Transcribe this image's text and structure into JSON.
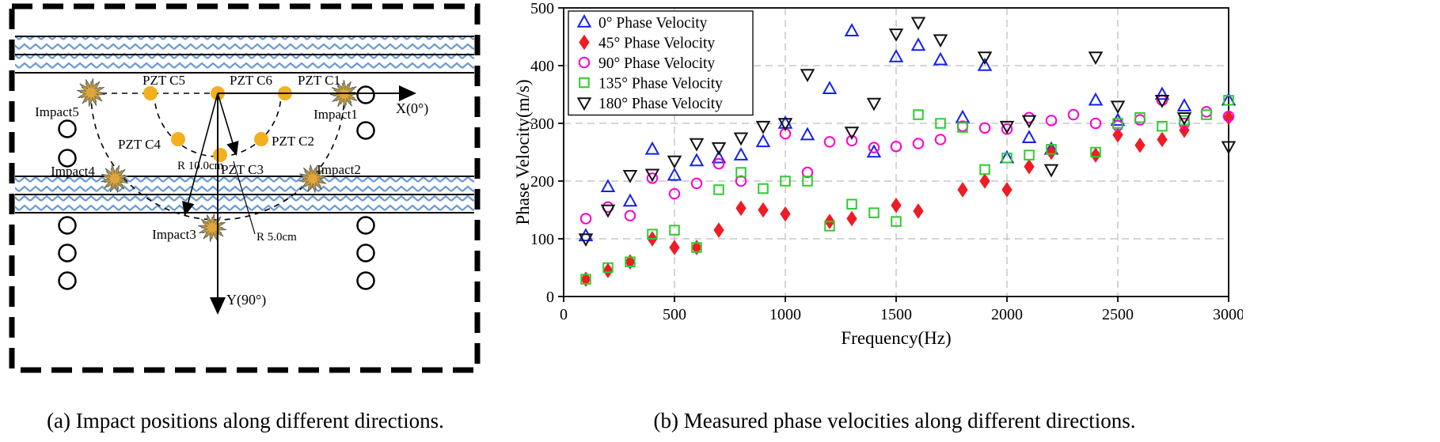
{
  "figure": {
    "captions": {
      "a": "(a) Impact positions along different directions.",
      "b": "(b) Measured phase velocities along different directions."
    }
  },
  "diagram": {
    "sensors": {
      "c5": "PZT C5",
      "c6": "PZT C6",
      "c1": "PZT C1",
      "c4": "PZT C4",
      "c2": "PZT C2",
      "c3": "PZT C3"
    },
    "impacts": {
      "i1": "Impact1",
      "i2": "Impact2",
      "i3": "Impact3",
      "i4": "Impact4",
      "i5": "Impact5"
    },
    "radii": {
      "r10": "R 10.0cm",
      "r5": "R 5.0cm"
    },
    "axes": {
      "x": "X(0°)",
      "y": "Y(90°)"
    },
    "colors": {
      "pzt_dot": "#F2B01E",
      "hatch": "#6B9BD2",
      "impact_fill": "#E0A63D"
    }
  },
  "chart_data": {
    "type": "scatter",
    "title": "",
    "xlabel": "Frequency(Hz)",
    "ylabel": "Phase Velocity(m/s)",
    "xlim": [
      0,
      3000
    ],
    "ylim": [
      0,
      500
    ],
    "xticks": [
      0,
      500,
      1000,
      1500,
      2000,
      2500,
      3000
    ],
    "yticks": [
      0,
      100,
      200,
      300,
      400,
      500
    ],
    "grid": "dashed",
    "legend_position": "top-left",
    "series": [
      {
        "name": "0° Phase Velocity",
        "marker": "triangle-up",
        "fill": "open",
        "color": "#1420F0",
        "points": [
          [
            100,
            105
          ],
          [
            200,
            190
          ],
          [
            300,
            165
          ],
          [
            400,
            255
          ],
          [
            500,
            210
          ],
          [
            600,
            235
          ],
          [
            700,
            240
          ],
          [
            800,
            245
          ],
          [
            900,
            268
          ],
          [
            1000,
            300
          ],
          [
            1100,
            280
          ],
          [
            1200,
            360
          ],
          [
            1300,
            460
          ],
          [
            1400,
            250
          ],
          [
            1500,
            415
          ],
          [
            1600,
            435
          ],
          [
            1700,
            410
          ],
          [
            1800,
            310
          ],
          [
            1900,
            400
          ],
          [
            2000,
            240
          ],
          [
            2100,
            275
          ],
          [
            2200,
            255
          ],
          [
            2400,
            340
          ],
          [
            2500,
            305
          ],
          [
            2700,
            350
          ],
          [
            2800,
            330
          ],
          [
            3000,
            340
          ]
        ]
      },
      {
        "name": "45° Phase Velocity",
        "marker": "diamond",
        "fill": "filled",
        "color": "#EE1C25",
        "points": [
          [
            100,
            30
          ],
          [
            200,
            45
          ],
          [
            300,
            60
          ],
          [
            400,
            100
          ],
          [
            500,
            85
          ],
          [
            600,
            85
          ],
          [
            700,
            115
          ],
          [
            800,
            153
          ],
          [
            900,
            150
          ],
          [
            1000,
            143
          ],
          [
            1200,
            130
          ],
          [
            1300,
            135
          ],
          [
            1500,
            158
          ],
          [
            1600,
            148
          ],
          [
            1800,
            185
          ],
          [
            1900,
            200
          ],
          [
            2000,
            185
          ],
          [
            2100,
            225
          ],
          [
            2200,
            250
          ],
          [
            2400,
            245
          ],
          [
            2500,
            280
          ],
          [
            2600,
            262
          ],
          [
            2700,
            272
          ],
          [
            2800,
            288
          ],
          [
            3000,
            310
          ]
        ]
      },
      {
        "name": "90° Phase Velocity",
        "marker": "circle",
        "fill": "open",
        "color": "#FF00CC",
        "points": [
          [
            100,
            135
          ],
          [
            200,
            155
          ],
          [
            300,
            140
          ],
          [
            400,
            205
          ],
          [
            500,
            178
          ],
          [
            600,
            196
          ],
          [
            700,
            230
          ],
          [
            800,
            200
          ],
          [
            1000,
            282
          ],
          [
            1100,
            215
          ],
          [
            1200,
            268
          ],
          [
            1300,
            270
          ],
          [
            1400,
            258
          ],
          [
            1500,
            260
          ],
          [
            1600,
            265
          ],
          [
            1700,
            272
          ],
          [
            1800,
            295
          ],
          [
            1900,
            292
          ],
          [
            2000,
            290
          ],
          [
            2100,
            310
          ],
          [
            2200,
            305
          ],
          [
            2300,
            315
          ],
          [
            2400,
            300
          ],
          [
            2500,
            296
          ],
          [
            2600,
            306
          ],
          [
            2700,
            340
          ],
          [
            2800,
            300
          ],
          [
            2900,
            320
          ],
          [
            3000,
            312
          ]
        ]
      },
      {
        "name": "135° Phase Velocity",
        "marker": "square",
        "fill": "open",
        "color": "#2ECC2E",
        "points": [
          [
            100,
            30
          ],
          [
            200,
            50
          ],
          [
            300,
            60
          ],
          [
            400,
            108
          ],
          [
            500,
            115
          ],
          [
            600,
            85
          ],
          [
            700,
            185
          ],
          [
            800,
            215
          ],
          [
            900,
            187
          ],
          [
            1000,
            200
          ],
          [
            1100,
            200
          ],
          [
            1200,
            122
          ],
          [
            1300,
            160
          ],
          [
            1400,
            145
          ],
          [
            1500,
            130
          ],
          [
            1600,
            315
          ],
          [
            1700,
            300
          ],
          [
            1800,
            293
          ],
          [
            1900,
            220
          ],
          [
            2000,
            240
          ],
          [
            2100,
            245
          ],
          [
            2200,
            255
          ],
          [
            2400,
            250
          ],
          [
            2500,
            300
          ],
          [
            2600,
            310
          ],
          [
            2700,
            295
          ],
          [
            2800,
            305
          ],
          [
            2900,
            315
          ],
          [
            3000,
            340
          ]
        ]
      },
      {
        "name": "180° Phase Velocity",
        "marker": "triangle-down",
        "fill": "open",
        "color": "#111111",
        "points": [
          [
            100,
            100
          ],
          [
            200,
            150
          ],
          [
            300,
            210
          ],
          [
            400,
            212
          ],
          [
            500,
            235
          ],
          [
            600,
            265
          ],
          [
            700,
            258
          ],
          [
            800,
            275
          ],
          [
            900,
            295
          ],
          [
            1000,
            300
          ],
          [
            1100,
            385
          ],
          [
            1300,
            285
          ],
          [
            1400,
            335
          ],
          [
            1500,
            455
          ],
          [
            1600,
            475
          ],
          [
            1700,
            445
          ],
          [
            1900,
            415
          ],
          [
            2000,
            295
          ],
          [
            2100,
            305
          ],
          [
            2200,
            220
          ],
          [
            2400,
            415
          ],
          [
            2500,
            330
          ],
          [
            2700,
            340
          ],
          [
            2800,
            310
          ],
          [
            3000,
            260
          ]
        ]
      }
    ]
  }
}
